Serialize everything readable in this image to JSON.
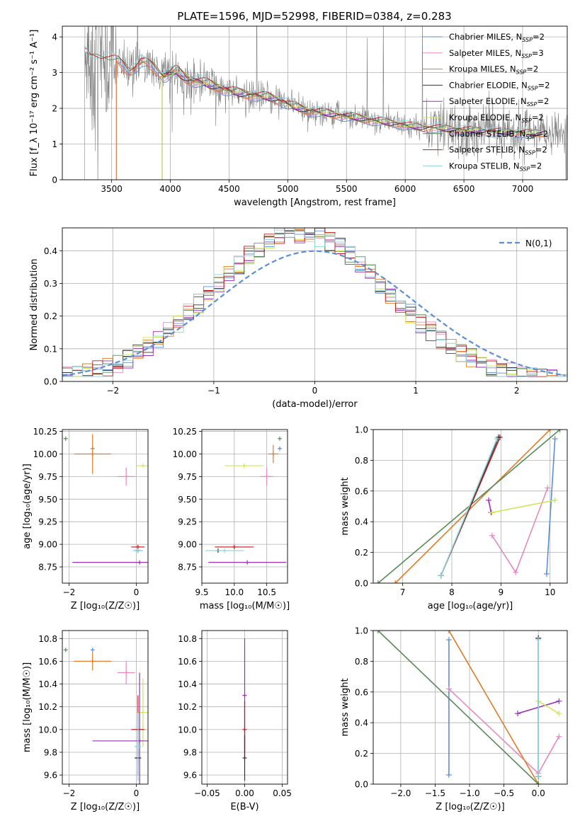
{
  "figure": {
    "title": "PLATE=1596, MJD=52998, FIBERID=0384, z=0.283"
  },
  "chart_data": [
    {
      "id": "spectrum",
      "type": "line",
      "xlabel": "wavelength [Angstrom, rest frame]",
      "ylabel": "Flux [f_λ 10⁻¹⁷ erg cm⁻² s⁻¹ A⁻¹]",
      "xlim": [
        3080,
        7380
      ],
      "ylim": [
        0,
        4.3
      ],
      "xticks": [
        3500,
        4000,
        4500,
        5000,
        5500,
        6000,
        6500,
        7000
      ],
      "yticks": [
        0,
        1,
        2,
        3,
        4
      ],
      "legend_position": "top-right",
      "data_color": "#808080",
      "model_anchor_points": {
        "x": [
          3270,
          3320,
          3380,
          3450,
          3550,
          3650,
          3750,
          3850,
          3950,
          4050,
          4150,
          4250,
          4350,
          4450,
          4550,
          4650,
          4750,
          4850,
          4950,
          5050,
          5150,
          5250,
          5350,
          5450,
          5550,
          5650,
          5750,
          5850,
          5950,
          6050,
          6150,
          6250,
          6350,
          6450,
          6550,
          6650,
          6750,
          6850,
          6950,
          7050,
          7150
        ],
        "y": [
          3.55,
          3.35,
          3.4,
          3.45,
          3.3,
          3.05,
          3.3,
          3.15,
          2.9,
          3.05,
          2.8,
          2.75,
          2.65,
          2.55,
          2.45,
          2.4,
          2.35,
          2.3,
          2.2,
          2.05,
          1.95,
          1.9,
          1.85,
          1.8,
          1.75,
          1.7,
          1.65,
          1.6,
          1.55,
          1.5,
          1.45,
          1.45,
          1.42,
          1.4,
          1.38,
          1.36,
          1.34,
          1.33,
          1.32,
          1.3,
          1.3
        ]
      },
      "series": [
        {
          "name": "Chabrier MILES, N_SSP=2",
          "color": "#5b8ed6",
          "start": 3540
        },
        {
          "name": "Salpeter MILES, N_SSP=3",
          "color": "#e58ac0",
          "start": 3540
        },
        {
          "name": "Kroupa MILES, N_SSP=2",
          "color": "#e07b2a",
          "start": 3540
        },
        {
          "name": "Chabrier ELODIE, N_SSP=2",
          "color": "#333333",
          "start": 3930
        },
        {
          "name": "Salpeter ELODIE, N_SSP=2",
          "color": "#9b30b8",
          "start": 3930
        },
        {
          "name": "Kroupa ELODIE, N_SSP=2",
          "color": "#cfe65a",
          "start": 3930
        },
        {
          "name": "Chabrier STELIB, N_SSP=2",
          "color": "#5a8a5a",
          "start": 3270
        },
        {
          "name": "Salpeter STELIB, N_SSP=2",
          "color": "#c0181a",
          "start": 3270
        },
        {
          "name": "Kroupa STELIB, N_SSP=2",
          "color": "#8fd3dc",
          "start": 3270
        }
      ]
    },
    {
      "id": "residuals",
      "type": "line",
      "xlabel": "(data-model)/error",
      "ylabel": "Normed distribution",
      "xlim": [
        -2.5,
        2.5
      ],
      "ylim": [
        0,
        0.47
      ],
      "xticks": [
        -2,
        -1,
        0,
        1,
        2
      ],
      "yticks": [
        0.0,
        0.1,
        0.2,
        0.3,
        0.4
      ],
      "grid": true,
      "legend_position": "top-right",
      "reference": {
        "name": "N(0,1)",
        "mean": 0,
        "sigma": 1,
        "color": "#5b8ed6"
      },
      "histogram_bin_width": 0.1,
      "histogram_sigma": 0.88
    },
    {
      "id": "age_vs_Z",
      "type": "scatter",
      "xlabel": "Z [log₁₀(Z/Z☉)]",
      "ylabel": "age [log₁₀(age/yr)]",
      "xlim": [
        -2.2,
        0.35
      ],
      "ylim": [
        8.57,
        10.27
      ],
      "xticks": [
        -2,
        0
      ],
      "yticks": [
        8.75,
        9.0,
        9.25,
        9.5,
        9.75,
        10.0,
        10.25
      ],
      "points": [
        {
          "series": 0,
          "x": -1.3,
          "y": 10.06,
          "xerr": 0.0,
          "yerr": 0.0
        },
        {
          "series": 2,
          "x": -1.3,
          "y": 10.0,
          "xerr": 0.55,
          "yerr": 0.22
        },
        {
          "series": 6,
          "x": -2.1,
          "y": 10.17,
          "xerr": 0.0,
          "yerr": 0.0
        },
        {
          "series": 1,
          "x": -0.3,
          "y": 9.75,
          "xerr": 0.26,
          "yerr": 0.1
        },
        {
          "series": 5,
          "x": 0.2,
          "y": 9.87,
          "xerr": 0.2,
          "yerr": 0.0
        },
        {
          "series": 4,
          "x": 0.1,
          "y": 8.8,
          "xerr": 2.0,
          "yerr": 0.0
        },
        {
          "series": 7,
          "x": 0.05,
          "y": 8.97,
          "xerr": 0.2,
          "yerr": 0.0
        },
        {
          "series": 3,
          "x": 0.05,
          "y": 8.93,
          "xerr": 0.1,
          "yerr": 0.0
        },
        {
          "series": 8,
          "x": 0.05,
          "y": 8.93,
          "xerr": 0.15,
          "yerr": 0.0
        }
      ]
    },
    {
      "id": "age_vs_mass",
      "type": "scatter",
      "xlabel": "mass [log₁₀(M/M☉)]",
      "ylabel": "",
      "xlim": [
        9.5,
        10.82
      ],
      "ylim": [
        8.57,
        10.27
      ],
      "xticks": [
        9.5,
        10.0,
        10.5
      ],
      "yticks": [
        8.75,
        9.0,
        9.25,
        9.5,
        9.75,
        10.0,
        10.25
      ],
      "points": [
        {
          "series": 0,
          "x": 10.7,
          "y": 10.06,
          "xerr": 0.0,
          "yerr": 0.0
        },
        {
          "series": 2,
          "x": 10.6,
          "y": 10.0,
          "xerr": 0.08,
          "yerr": 0.1
        },
        {
          "series": 6,
          "x": 10.7,
          "y": 10.17,
          "xerr": 0.0,
          "yerr": 0.0
        },
        {
          "series": 1,
          "x": 10.5,
          "y": 9.75,
          "xerr": 0.1,
          "yerr": 0.1
        },
        {
          "series": 5,
          "x": 10.15,
          "y": 9.87,
          "xerr": 0.3,
          "yerr": 0.0
        },
        {
          "series": 4,
          "x": 10.2,
          "y": 8.8,
          "xerr": 0.6,
          "yerr": 0.0
        },
        {
          "series": 7,
          "x": 10.0,
          "y": 8.97,
          "xerr": 0.3,
          "yerr": 0.0
        },
        {
          "series": 3,
          "x": 9.75,
          "y": 8.93,
          "xerr": 0.0,
          "yerr": 0.0
        },
        {
          "series": 8,
          "x": 9.85,
          "y": 8.93,
          "xerr": 0.3,
          "yerr": 0.0
        }
      ]
    },
    {
      "id": "weight_vs_age",
      "type": "line",
      "xlabel": "age [log₁₀(age/yr)]",
      "ylabel": "mass weight",
      "xlim": [
        6.4,
        10.35
      ],
      "ylim": [
        0,
        1.0
      ],
      "xticks": [
        7,
        8,
        9,
        10
      ],
      "yticks": [
        0.0,
        0.2,
        0.4,
        0.6,
        0.8,
        1.0
      ],
      "grid": true,
      "lines": [
        {
          "series": 0,
          "x": [
            9.93,
            10.1
          ],
          "y": [
            0.06,
            0.94
          ]
        },
        {
          "series": 1,
          "x": [
            8.82,
            9.3,
            9.95
          ],
          "y": [
            0.31,
            0.07,
            0.62
          ]
        },
        {
          "series": 2,
          "x": [
            6.85,
            10.0
          ],
          "y": [
            0.0,
            1.0
          ]
        },
        {
          "series": 6,
          "x": [
            6.5,
            10.2
          ],
          "y": [
            0.0,
            1.0
          ]
        },
        {
          "series": 4,
          "x": [
            8.75,
            8.8
          ],
          "y": [
            0.54,
            0.46
          ]
        },
        {
          "series": 5,
          "x": [
            8.82,
            10.1
          ],
          "y": [
            0.46,
            0.54
          ]
        },
        {
          "series": 7,
          "x": [
            7.78,
            8.98
          ],
          "y": [
            0.05,
            0.95
          ]
        },
        {
          "series": 3,
          "x": [
            7.78,
            8.95
          ],
          "y": [
            0.05,
            0.95
          ]
        },
        {
          "series": 8,
          "x": [
            7.78,
            8.92
          ],
          "y": [
            0.05,
            0.94
          ]
        }
      ]
    },
    {
      "id": "mass_vs_Z",
      "type": "scatter",
      "xlabel": "Z [log₁₀(Z/Z☉)]",
      "ylabel": "mass [log₁₀(M/M☉)]",
      "xlim": [
        -2.2,
        0.35
      ],
      "ylim": [
        9.52,
        10.87
      ],
      "xticks": [
        -2,
        0
      ],
      "yticks": [
        9.6,
        9.8,
        10.0,
        10.2,
        10.4,
        10.6,
        10.8
      ],
      "points": [
        {
          "series": 0,
          "x": -1.3,
          "y": 10.7,
          "xerr": 0.0,
          "yerr": 0.0
        },
        {
          "series": 2,
          "x": -1.3,
          "y": 10.6,
          "xerr": 0.55,
          "yerr": 0.08
        },
        {
          "series": 6,
          "x": -2.1,
          "y": 10.7,
          "xerr": 0.0,
          "yerr": 0.0
        },
        {
          "series": 1,
          "x": -0.3,
          "y": 10.5,
          "xerr": 0.26,
          "yerr": 0.1
        },
        {
          "series": 5,
          "x": 0.2,
          "y": 10.15,
          "xerr": 0.2,
          "yerr": 0.3
        },
        {
          "series": 4,
          "x": 0.1,
          "y": 9.9,
          "xerr": 1.4,
          "yerr": 0.6
        },
        {
          "series": 7,
          "x": 0.05,
          "y": 10.0,
          "xerr": 0.2,
          "yerr": 0.3
        },
        {
          "series": 3,
          "x": 0.05,
          "y": 9.75,
          "xerr": 0.1,
          "yerr": 0.15
        },
        {
          "series": 8,
          "x": 0.05,
          "y": 9.85,
          "xerr": 0.1,
          "yerr": 0.3
        }
      ]
    },
    {
      "id": "mass_vs_ebv",
      "type": "scatter",
      "xlabel": "E(B-V)",
      "ylabel": "",
      "xlim": [
        -0.057,
        0.057
      ],
      "ylim": [
        9.52,
        10.87
      ],
      "xticks": [
        -0.05,
        0.0,
        0.05
      ],
      "yticks": [
        9.6,
        9.8,
        10.0,
        10.2,
        10.4,
        10.6,
        10.8
      ],
      "points": [
        {
          "series": 4,
          "x": 0.0,
          "y": 10.3,
          "xerr": 0.0,
          "yerr": 0.5
        },
        {
          "series": 7,
          "x": 0.0,
          "y": 10.0,
          "xerr": 0.0,
          "yerr": 0.25
        },
        {
          "series": 3,
          "x": 0.0,
          "y": 9.75,
          "xerr": 0.0,
          "yerr": 0.2
        }
      ]
    },
    {
      "id": "weight_vs_Z",
      "type": "line",
      "xlabel": "Z [log₁₀(Z/Z☉)]",
      "ylabel": "mass weight",
      "xlim": [
        -2.4,
        0.42
      ],
      "ylim": [
        0,
        1.0
      ],
      "xticks": [
        -2.0,
        -1.5,
        -1.0,
        -0.5,
        0.0
      ],
      "yticks": [
        0.0,
        0.2,
        0.4,
        0.6,
        0.8,
        1.0
      ],
      "grid": true,
      "lines": [
        {
          "series": 0,
          "x": [
            -1.3,
            -1.3
          ],
          "y": [
            0.06,
            0.94
          ]
        },
        {
          "series": 1,
          "x": [
            -1.3,
            0.0,
            0.3
          ],
          "y": [
            0.62,
            0.07,
            0.31
          ]
        },
        {
          "series": 2,
          "x": [
            -1.3,
            0.0
          ],
          "y": [
            1.0,
            0.0
          ]
        },
        {
          "series": 6,
          "x": [
            -2.33,
            0.0
          ],
          "y": [
            1.0,
            0.0
          ]
        },
        {
          "series": 4,
          "x": [
            -0.3,
            0.3
          ],
          "y": [
            0.46,
            0.54
          ]
        },
        {
          "series": 5,
          "x": [
            0.0,
            0.3
          ],
          "y": [
            0.54,
            0.46
          ]
        },
        {
          "series": 7,
          "x": [
            0.0,
            0.0
          ],
          "y": [
            0.05,
            0.95
          ]
        },
        {
          "series": 3,
          "x": [
            0.0,
            0.0
          ],
          "y": [
            0.05,
            0.95
          ]
        },
        {
          "series": 8,
          "x": [
            0.0,
            0.0
          ],
          "y": [
            0.05,
            0.94
          ]
        }
      ]
    }
  ]
}
